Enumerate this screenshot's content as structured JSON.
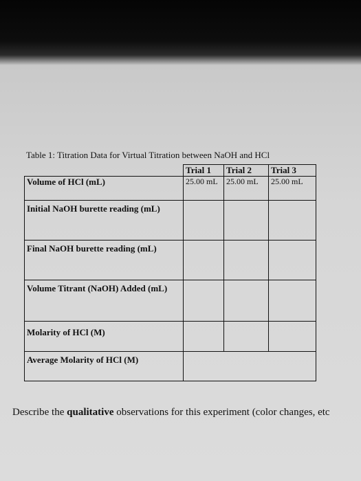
{
  "table": {
    "caption": "Table 1: Titration Data for Virtual Titration between NaOH and HCl",
    "header": [
      "Trial 1",
      "Trial 2",
      "Trial 3"
    ],
    "rows": [
      {
        "label": "Volume of HCl (mL)",
        "values": [
          "25.00 mL",
          "25.00 mL",
          "25.00 mL"
        ]
      },
      {
        "label": "Initial NaOH burette reading (mL)"
      },
      {
        "label": "Final NaOH burette reading (mL)"
      },
      {
        "label": "Volume Titrant (NaOH) Added (mL)"
      },
      {
        "label": "Molarity of HCl (M)"
      },
      {
        "label": "Average Molarity of HCl (M)"
      }
    ]
  },
  "description": {
    "before": "Describe the ",
    "bold": "qualitative",
    "after": " observations for this experiment (color changes, etc"
  }
}
